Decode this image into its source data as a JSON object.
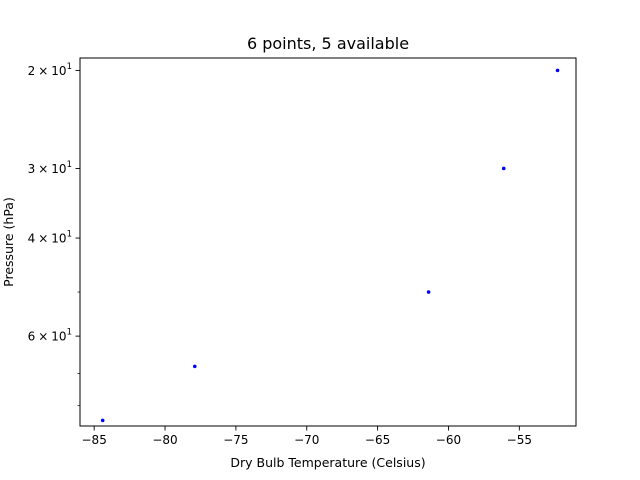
{
  "chart_data": {
    "type": "scatter",
    "title": "6 points, 5 available",
    "xlabel": "Dry Bulb Temperature (Celsius)",
    "ylabel": "Pressure (hPa)",
    "xlim": [
      -86,
      -51
    ],
    "ylim": [
      87,
      19
    ],
    "yscale": "log",
    "yaxis_inverted": true,
    "grid": false,
    "x_ticks": [
      {
        "value": -85,
        "label": "−85"
      },
      {
        "value": -80,
        "label": "−80"
      },
      {
        "value": -75,
        "label": "−75"
      },
      {
        "value": -70,
        "label": "−70"
      },
      {
        "value": -65,
        "label": "−65"
      },
      {
        "value": -60,
        "label": "−60"
      },
      {
        "value": -55,
        "label": "−55"
      }
    ],
    "y_ticks": [
      {
        "value": 20,
        "mantissa": "2",
        "times": "×",
        "base": "10",
        "exp": "1"
      },
      {
        "value": 30,
        "mantissa": "3",
        "times": "×",
        "base": "10",
        "exp": "1"
      },
      {
        "value": 40,
        "mantissa": "4",
        "times": "×",
        "base": "10",
        "exp": "1"
      },
      {
        "value": 60,
        "mantissa": "6",
        "times": "×",
        "base": "10",
        "exp": "1"
      }
    ],
    "y_minor_ticks": [
      50,
      70,
      80
    ],
    "marker_color": "#0000ff",
    "points": [
      {
        "x": -84.4,
        "y": 85
      },
      {
        "x": -77.9,
        "y": 68
      },
      {
        "x": -61.4,
        "y": 50
      },
      {
        "x": -56.1,
        "y": 30
      },
      {
        "x": -52.3,
        "y": 20
      }
    ]
  }
}
